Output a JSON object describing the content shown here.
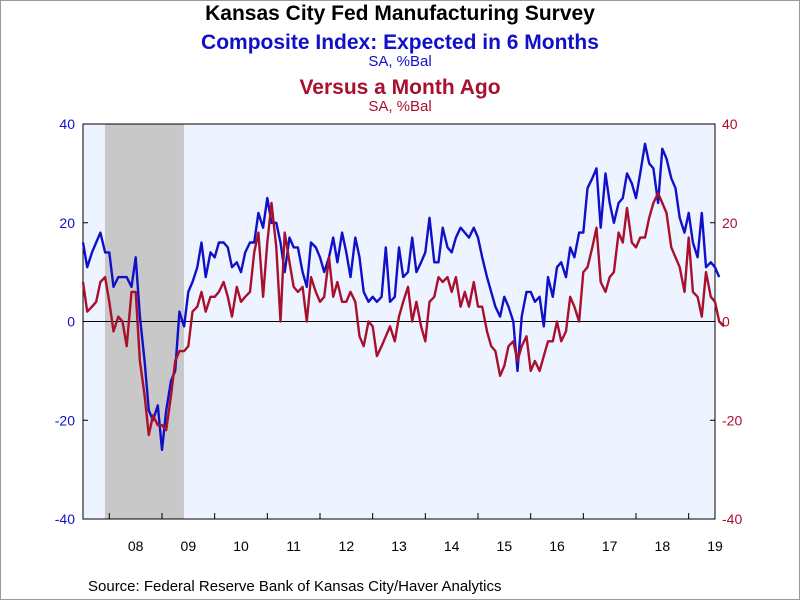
{
  "titles": {
    "main": "Kansas City Fed Manufacturing Survey",
    "series1": "Composite Index: Expected in 6 Months",
    "series1_unit": "SA, %Bal",
    "series2": "Versus a Month Ago",
    "series2_unit": "SA, %Bal"
  },
  "source": "Source:  Federal Reserve Bank of Kansas City/Haver Analytics",
  "colors": {
    "series1": "#1010c8",
    "series2": "#a8102e",
    "plot_background": "#eef4ff",
    "recession": "#c8c8c8",
    "zero_line": "#000000"
  },
  "chart_data": {
    "type": "line",
    "x_range": [
      2007.5,
      2019.5
    ],
    "x_ticks": [
      "08",
      "09",
      "10",
      "11",
      "12",
      "13",
      "14",
      "15",
      "16",
      "17",
      "18",
      "19"
    ],
    "left_axis": {
      "ylim": [
        -40,
        40
      ],
      "ticks": [
        "40",
        "20",
        "0",
        "-20",
        "-40"
      ],
      "color": "#1010c8"
    },
    "right_axis": {
      "ylim": [
        -40,
        40
      ],
      "ticks": [
        "40",
        "20",
        "0",
        "-20",
        "-40"
      ],
      "color": "#a8102e"
    },
    "recession_band": [
      2007.9167,
      2009.4167
    ],
    "grid": false,
    "series": [
      {
        "axis": "left",
        "color": "#1010c8",
        "points": [
          [
            2007.5,
            16
          ],
          [
            2007.58,
            11
          ],
          [
            2007.67,
            14
          ],
          [
            2007.75,
            16
          ],
          [
            2007.83,
            18
          ],
          [
            2007.92,
            14
          ],
          [
            2008.0,
            14
          ],
          [
            2008.08,
            7
          ],
          [
            2008.17,
            9
          ],
          [
            2008.25,
            9
          ],
          [
            2008.33,
            9
          ],
          [
            2008.42,
            7
          ],
          [
            2008.5,
            13
          ],
          [
            2008.58,
            1
          ],
          [
            2008.67,
            -8
          ],
          [
            2008.75,
            -18
          ],
          [
            2008.83,
            -20
          ],
          [
            2008.92,
            -17
          ],
          [
            2009.0,
            -26
          ],
          [
            2009.08,
            -18
          ],
          [
            2009.17,
            -12
          ],
          [
            2009.25,
            -10
          ],
          [
            2009.33,
            2
          ],
          [
            2009.42,
            -1
          ],
          [
            2009.5,
            6
          ],
          [
            2009.58,
            8
          ],
          [
            2009.67,
            11
          ],
          [
            2009.75,
            16
          ],
          [
            2009.83,
            9
          ],
          [
            2009.92,
            14
          ],
          [
            2010.0,
            13
          ],
          [
            2010.08,
            16
          ],
          [
            2010.17,
            16
          ],
          [
            2010.25,
            15
          ],
          [
            2010.33,
            11
          ],
          [
            2010.42,
            12
          ],
          [
            2010.5,
            10
          ],
          [
            2010.58,
            14
          ],
          [
            2010.67,
            16
          ],
          [
            2010.75,
            16
          ],
          [
            2010.83,
            22
          ],
          [
            2010.92,
            19
          ],
          [
            2011.0,
            25
          ],
          [
            2011.08,
            20
          ],
          [
            2011.17,
            20
          ],
          [
            2011.25,
            16
          ],
          [
            2011.33,
            10
          ],
          [
            2011.42,
            17
          ],
          [
            2011.5,
            15
          ],
          [
            2011.58,
            15
          ],
          [
            2011.67,
            10
          ],
          [
            2011.75,
            7
          ],
          [
            2011.83,
            16
          ],
          [
            2011.92,
            15
          ],
          [
            2012.0,
            13
          ],
          [
            2012.08,
            10
          ],
          [
            2012.17,
            13
          ],
          [
            2012.25,
            17
          ],
          [
            2012.33,
            12
          ],
          [
            2012.42,
            18
          ],
          [
            2012.5,
            14
          ],
          [
            2012.58,
            9
          ],
          [
            2012.67,
            17
          ],
          [
            2012.75,
            13
          ],
          [
            2012.83,
            6
          ],
          [
            2012.92,
            4
          ],
          [
            2013.0,
            5
          ],
          [
            2013.08,
            4
          ],
          [
            2013.17,
            5
          ],
          [
            2013.25,
            15
          ],
          [
            2013.33,
            4
          ],
          [
            2013.42,
            5
          ],
          [
            2013.5,
            15
          ],
          [
            2013.58,
            9
          ],
          [
            2013.67,
            10
          ],
          [
            2013.75,
            17
          ],
          [
            2013.83,
            10
          ],
          [
            2013.92,
            12
          ],
          [
            2014.0,
            14
          ],
          [
            2014.08,
            21
          ],
          [
            2014.17,
            12
          ],
          [
            2014.25,
            12
          ],
          [
            2014.33,
            19
          ],
          [
            2014.42,
            15
          ],
          [
            2014.5,
            14
          ],
          [
            2014.58,
            17
          ],
          [
            2014.67,
            19
          ],
          [
            2014.75,
            18
          ],
          [
            2014.83,
            17
          ],
          [
            2014.92,
            19
          ],
          [
            2015.0,
            17
          ],
          [
            2015.08,
            13
          ],
          [
            2015.17,
            9
          ],
          [
            2015.25,
            6
          ],
          [
            2015.33,
            3
          ],
          [
            2015.42,
            1
          ],
          [
            2015.5,
            5
          ],
          [
            2015.58,
            3
          ],
          [
            2015.67,
            0
          ],
          [
            2015.75,
            -10
          ],
          [
            2015.83,
            1
          ],
          [
            2015.92,
            6
          ],
          [
            2016.0,
            6
          ],
          [
            2016.08,
            4
          ],
          [
            2016.17,
            5
          ],
          [
            2016.25,
            -1
          ],
          [
            2016.33,
            9
          ],
          [
            2016.42,
            5
          ],
          [
            2016.5,
            11
          ],
          [
            2016.58,
            12
          ],
          [
            2016.67,
            9
          ],
          [
            2016.75,
            15
          ],
          [
            2016.83,
            13
          ],
          [
            2016.92,
            18
          ],
          [
            2017.0,
            18
          ],
          [
            2017.08,
            27
          ],
          [
            2017.17,
            29
          ],
          [
            2017.25,
            31
          ],
          [
            2017.33,
            19
          ],
          [
            2017.42,
            30
          ],
          [
            2017.5,
            24
          ],
          [
            2017.58,
            20
          ],
          [
            2017.67,
            24
          ],
          [
            2017.75,
            25
          ],
          [
            2017.83,
            30
          ],
          [
            2017.92,
            28
          ],
          [
            2018.0,
            25
          ],
          [
            2018.08,
            30
          ],
          [
            2018.17,
            36
          ],
          [
            2018.25,
            32
          ],
          [
            2018.33,
            31
          ],
          [
            2018.42,
            24
          ],
          [
            2018.5,
            35
          ],
          [
            2018.58,
            33
          ],
          [
            2018.67,
            29
          ],
          [
            2018.75,
            27
          ],
          [
            2018.83,
            21
          ],
          [
            2018.92,
            18
          ],
          [
            2019.0,
            22
          ],
          [
            2019.08,
            16
          ],
          [
            2019.17,
            13
          ],
          [
            2019.25,
            22
          ],
          [
            2019.33,
            11
          ],
          [
            2019.42,
            12
          ],
          [
            2019.5,
            11
          ],
          [
            2019.58,
            9
          ]
        ]
      },
      {
        "axis": "right",
        "color": "#a8102e",
        "points": [
          [
            2007.5,
            8
          ],
          [
            2007.58,
            2
          ],
          [
            2007.67,
            3
          ],
          [
            2007.75,
            4
          ],
          [
            2007.83,
            8
          ],
          [
            2007.92,
            9
          ],
          [
            2008.0,
            4
          ],
          [
            2008.08,
            -2
          ],
          [
            2008.17,
            1
          ],
          [
            2008.25,
            0
          ],
          [
            2008.33,
            -5
          ],
          [
            2008.42,
            6
          ],
          [
            2008.5,
            6
          ],
          [
            2008.58,
            -8
          ],
          [
            2008.67,
            -15
          ],
          [
            2008.75,
            -23
          ],
          [
            2008.83,
            -19
          ],
          [
            2008.92,
            -21
          ],
          [
            2009.0,
            -21
          ],
          [
            2009.08,
            -22
          ],
          [
            2009.17,
            -15
          ],
          [
            2009.25,
            -8
          ],
          [
            2009.33,
            -6
          ],
          [
            2009.42,
            -6
          ],
          [
            2009.5,
            -5
          ],
          [
            2009.58,
            2
          ],
          [
            2009.67,
            3
          ],
          [
            2009.75,
            6
          ],
          [
            2009.83,
            2
          ],
          [
            2009.92,
            5
          ],
          [
            2010.0,
            5
          ],
          [
            2010.08,
            6
          ],
          [
            2010.17,
            8
          ],
          [
            2010.25,
            5
          ],
          [
            2010.33,
            1
          ],
          [
            2010.42,
            7
          ],
          [
            2010.5,
            4
          ],
          [
            2010.58,
            5
          ],
          [
            2010.67,
            6
          ],
          [
            2010.75,
            14
          ],
          [
            2010.83,
            18
          ],
          [
            2010.92,
            5
          ],
          [
            2011.0,
            16
          ],
          [
            2011.08,
            24
          ],
          [
            2011.17,
            15
          ],
          [
            2011.25,
            0
          ],
          [
            2011.33,
            18
          ],
          [
            2011.42,
            12
          ],
          [
            2011.5,
            7
          ],
          [
            2011.58,
            6
          ],
          [
            2011.67,
            7
          ],
          [
            2011.75,
            0
          ],
          [
            2011.83,
            9
          ],
          [
            2011.92,
            6
          ],
          [
            2012.0,
            4
          ],
          [
            2012.08,
            5
          ],
          [
            2012.17,
            13
          ],
          [
            2012.25,
            5
          ],
          [
            2012.33,
            8
          ],
          [
            2012.42,
            4
          ],
          [
            2012.5,
            4
          ],
          [
            2012.58,
            6
          ],
          [
            2012.67,
            4
          ],
          [
            2012.75,
            -3
          ],
          [
            2012.83,
            -5
          ],
          [
            2012.92,
            0
          ],
          [
            2013.0,
            -1
          ],
          [
            2013.08,
            -7
          ],
          [
            2013.17,
            -5
          ],
          [
            2013.25,
            -3
          ],
          [
            2013.33,
            -1
          ],
          [
            2013.42,
            -4
          ],
          [
            2013.5,
            1
          ],
          [
            2013.58,
            4
          ],
          [
            2013.67,
            7
          ],
          [
            2013.75,
            0
          ],
          [
            2013.83,
            4
          ],
          [
            2013.92,
            -1
          ],
          [
            2014.0,
            -4
          ],
          [
            2014.08,
            4
          ],
          [
            2014.17,
            5
          ],
          [
            2014.25,
            9
          ],
          [
            2014.33,
            8
          ],
          [
            2014.42,
            9
          ],
          [
            2014.5,
            6
          ],
          [
            2014.58,
            9
          ],
          [
            2014.67,
            3
          ],
          [
            2014.75,
            6
          ],
          [
            2014.83,
            3
          ],
          [
            2014.92,
            8
          ],
          [
            2015.0,
            3
          ],
          [
            2015.08,
            3
          ],
          [
            2015.17,
            -2
          ],
          [
            2015.25,
            -5
          ],
          [
            2015.33,
            -6
          ],
          [
            2015.42,
            -11
          ],
          [
            2015.5,
            -9
          ],
          [
            2015.58,
            -5
          ],
          [
            2015.67,
            -4
          ],
          [
            2015.75,
            -8
          ],
          [
            2015.83,
            -5
          ],
          [
            2015.92,
            -3
          ],
          [
            2016.0,
            -10
          ],
          [
            2016.08,
            -8
          ],
          [
            2016.17,
            -10
          ],
          [
            2016.25,
            -7
          ],
          [
            2016.33,
            -4
          ],
          [
            2016.42,
            -4
          ],
          [
            2016.5,
            0
          ],
          [
            2016.58,
            -4
          ],
          [
            2016.67,
            -2
          ],
          [
            2016.75,
            5
          ],
          [
            2016.83,
            3
          ],
          [
            2016.92,
            0
          ],
          [
            2017.0,
            10
          ],
          [
            2017.08,
            11
          ],
          [
            2017.17,
            15
          ],
          [
            2017.25,
            19
          ],
          [
            2017.33,
            8
          ],
          [
            2017.42,
            6
          ],
          [
            2017.5,
            9
          ],
          [
            2017.58,
            10
          ],
          [
            2017.67,
            18
          ],
          [
            2017.75,
            16
          ],
          [
            2017.83,
            23
          ],
          [
            2017.92,
            16
          ],
          [
            2018.0,
            15
          ],
          [
            2018.08,
            17
          ],
          [
            2018.17,
            17
          ],
          [
            2018.25,
            21
          ],
          [
            2018.33,
            24
          ],
          [
            2018.42,
            26
          ],
          [
            2018.5,
            24
          ],
          [
            2018.58,
            22
          ],
          [
            2018.67,
            15
          ],
          [
            2018.75,
            13
          ],
          [
            2018.83,
            11
          ],
          [
            2018.92,
            6
          ],
          [
            2019.0,
            17
          ],
          [
            2019.08,
            6
          ],
          [
            2019.17,
            5
          ],
          [
            2019.25,
            1
          ],
          [
            2019.33,
            10
          ],
          [
            2019.42,
            5
          ],
          [
            2019.5,
            4
          ],
          [
            2019.58,
            0
          ],
          [
            2019.67,
            -1
          ]
        ]
      }
    ]
  }
}
